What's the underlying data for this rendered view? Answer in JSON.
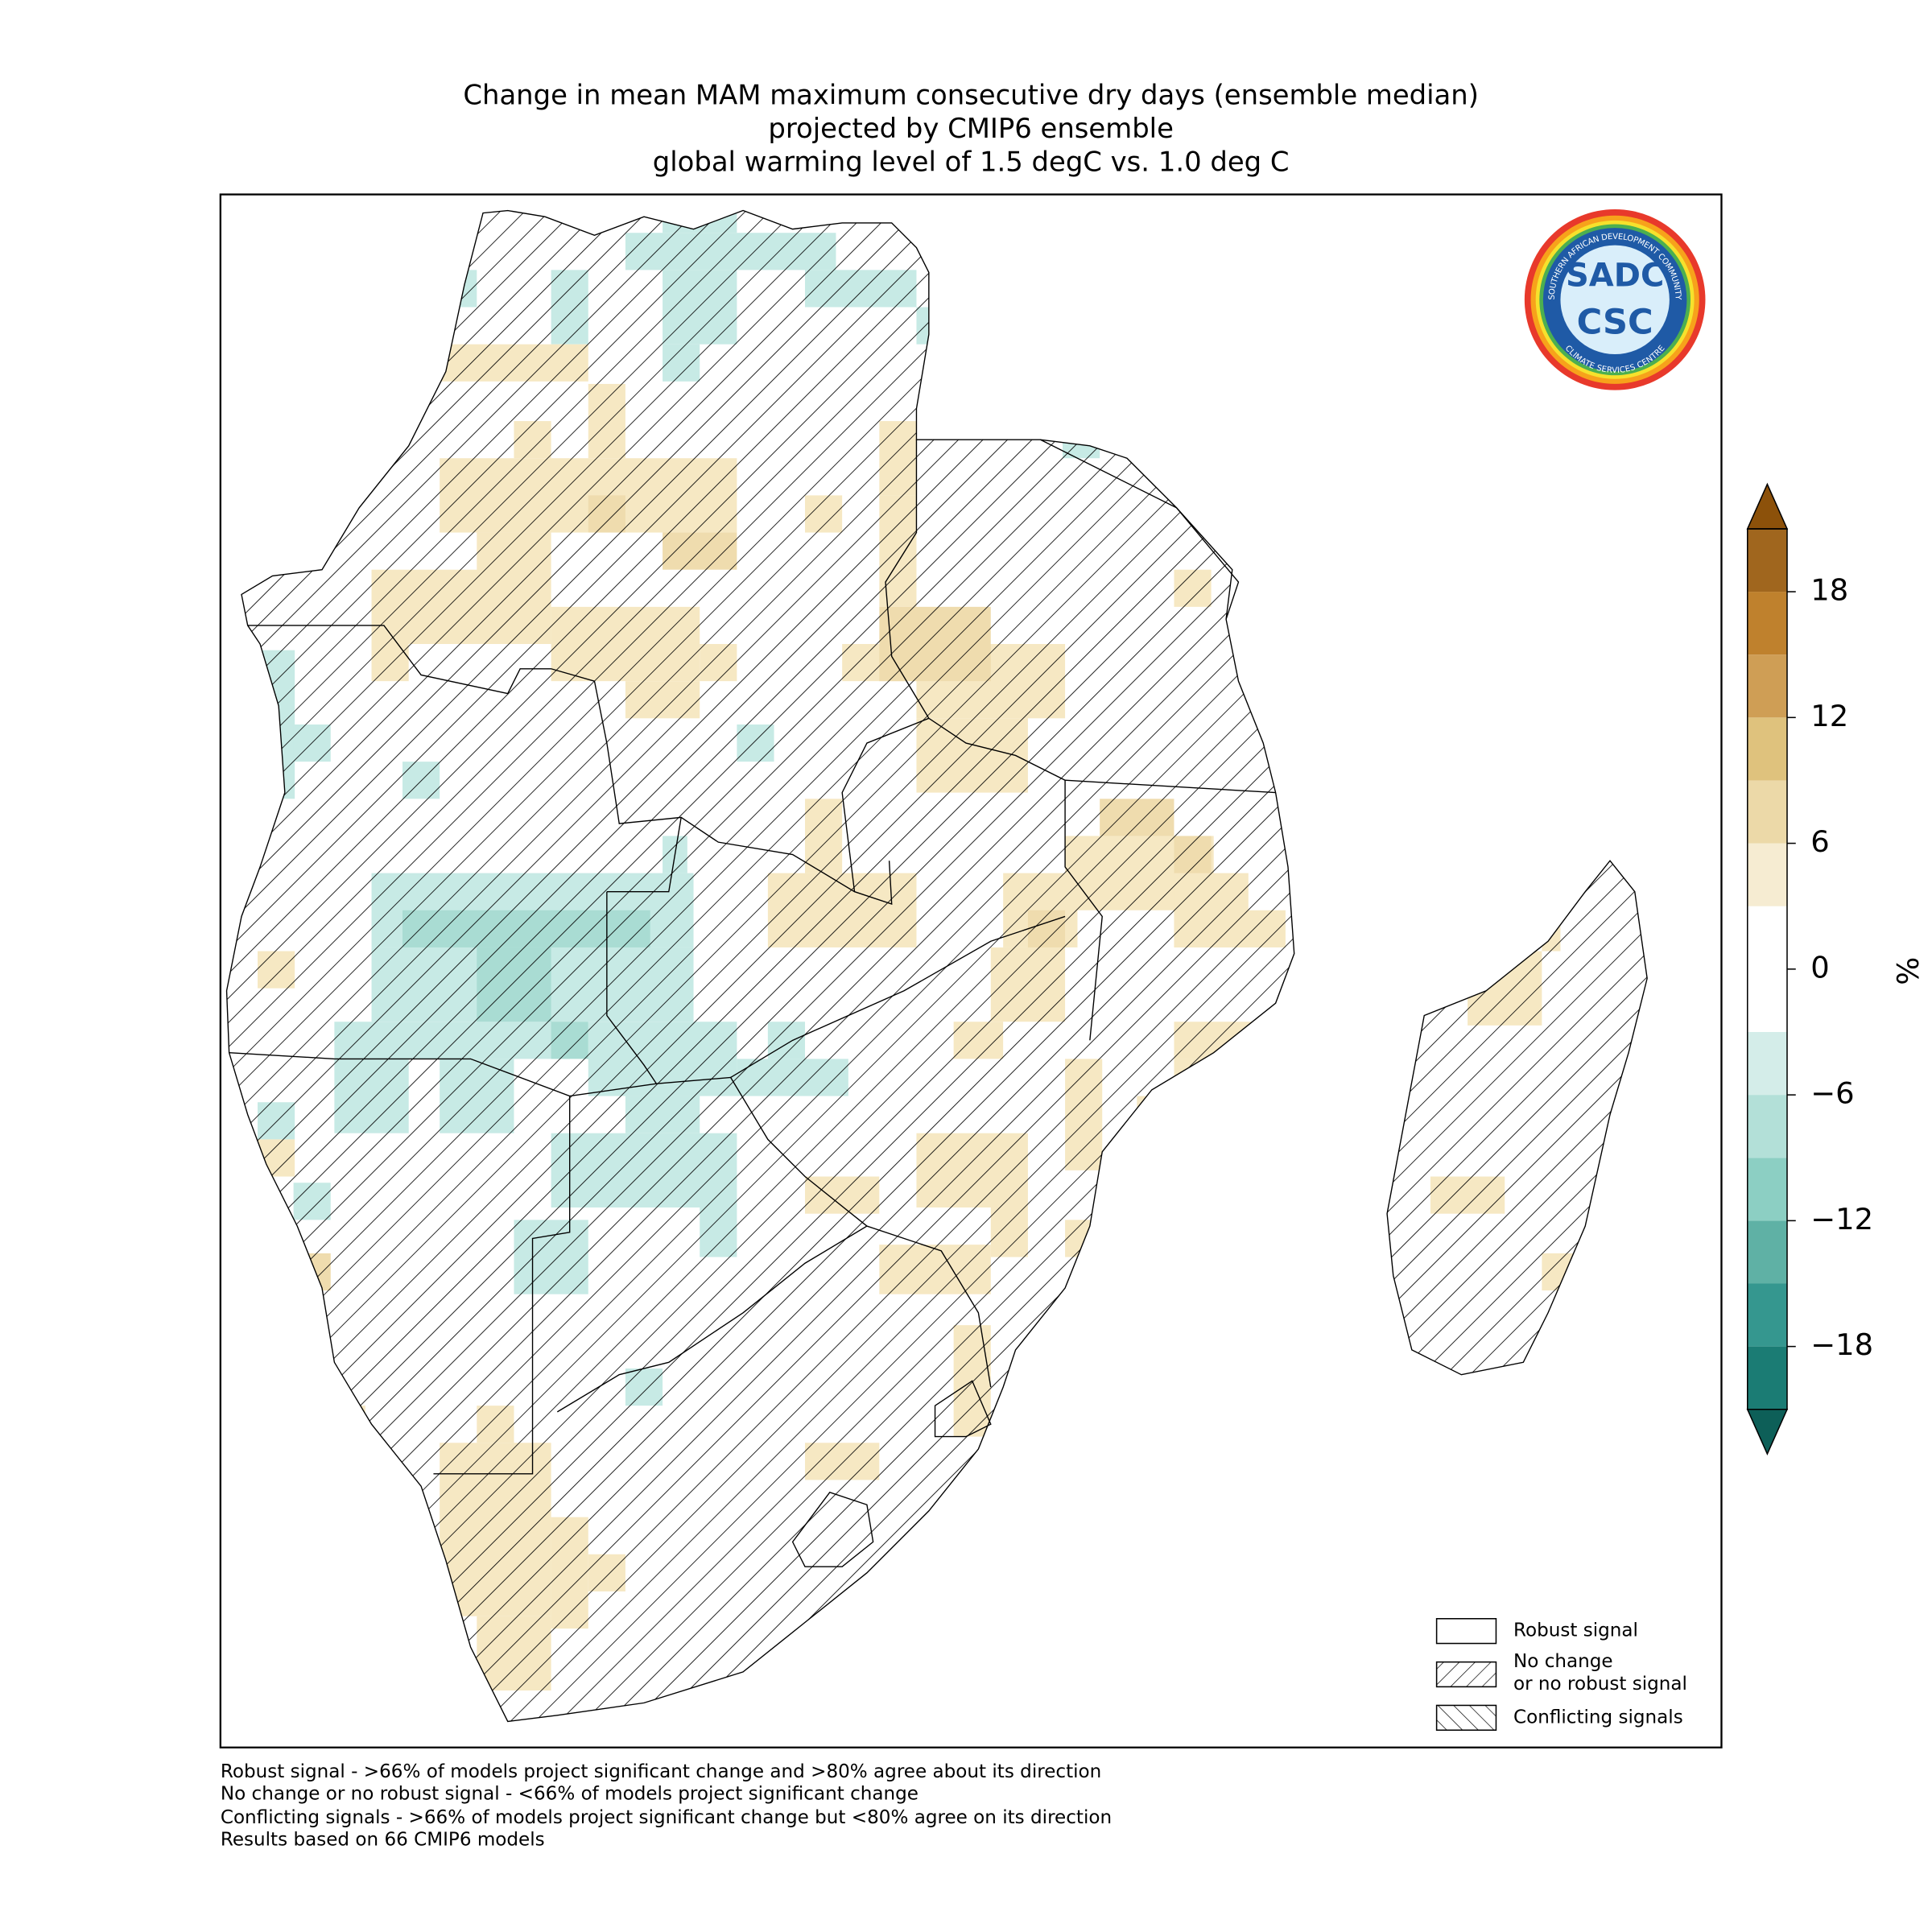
{
  "title": [
    "Change in mean MAM maximum consecutive dry days (ensemble median)",
    "projected by CMIP6 ensemble",
    "global warming level of 1.5 degC vs. 1.0 deg C"
  ],
  "logo": {
    "top": "SOUTHERN AFRICAN DEVELOPMENT COMMUNITY",
    "name": "SADC",
    "short": "CSC",
    "bottom": "CLIMATE SERVICES CENTRE"
  },
  "colorbar": {
    "label": "%",
    "levels": [
      -21,
      -18,
      -15,
      -12,
      -9,
      -6,
      -3,
      0,
      3,
      6,
      9,
      12,
      15,
      18,
      21
    ],
    "colors": [
      "#1b7c74",
      "#35978f",
      "#5fb1a5",
      "#8ccfc3",
      "#b3e0d8",
      "#d4ede9",
      "#ffffff",
      "#ffffff",
      "#f6ecd2",
      "#ecd9a8",
      "#dfc27d",
      "#cf9e55",
      "#bf812d",
      "#a0661e"
    ],
    "extend_colors": {
      "min": "#0d5f58",
      "max": "#8c510a"
    },
    "ticks": [
      {
        "value": -18,
        "label": "−18"
      },
      {
        "value": -12,
        "label": "−12"
      },
      {
        "value": -6,
        "label": "−6"
      },
      0,
      6,
      12,
      18
    ]
  },
  "legend": [
    {
      "lines": [
        "Robust signal"
      ]
    },
    {
      "lines": [
        "No change",
        "or no robust signal"
      ]
    },
    {
      "lines": [
        "Conflicting signals"
      ]
    }
  ],
  "notes": [
    "Robust signal - >66% of models project significant change and >80% agree about its direction",
    "No change or no robust signal - <66% of models project significant change",
    "Conflicting signals - >66% of models project significant change but <80% agree on its direction",
    "Results based on 66 CMIP6 models"
  ]
}
